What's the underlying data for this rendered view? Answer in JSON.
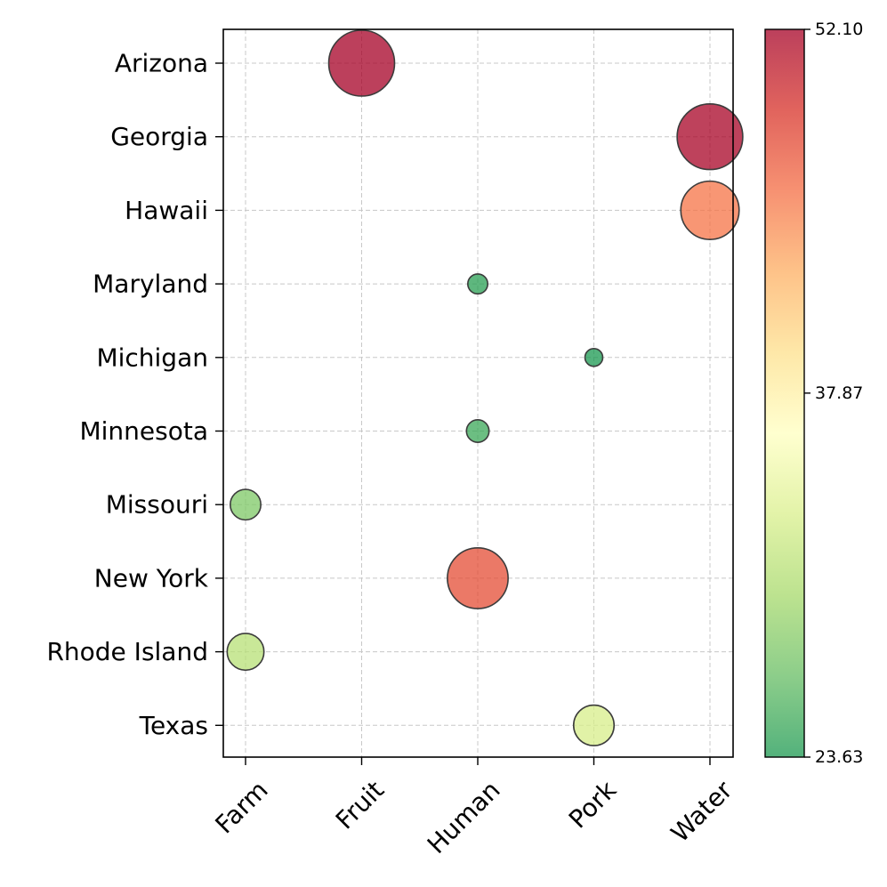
{
  "chart_data": {
    "type": "scatter",
    "subtype": "bubble",
    "title": "",
    "xlabel": "",
    "ylabel": "",
    "x_categories": [
      "Farm",
      "Fruit",
      "Human",
      "Pork",
      "Water"
    ],
    "y_categories": [
      "Arizona",
      "Georgia",
      "Hawaii",
      "Maryland",
      "Michigan",
      "Minnesota",
      "Missouri",
      "New York",
      "Rhode Island",
      "Texas"
    ],
    "grid": true,
    "points": [
      {
        "state": "Arizona",
        "category": "Fruit",
        "value": 52.1
      },
      {
        "state": "Georgia",
        "category": "Water",
        "value": 51.9
      },
      {
        "state": "Hawaii",
        "category": "Water",
        "value": 45.5
      },
      {
        "state": "Maryland",
        "category": "Human",
        "value": 24.2
      },
      {
        "state": "Michigan",
        "category": "Pork",
        "value": 23.63
      },
      {
        "state": "Minnesota",
        "category": "Human",
        "value": 25.0
      },
      {
        "state": "Missouri",
        "category": "Farm",
        "value": 28.0
      },
      {
        "state": "New York",
        "category": "Human",
        "value": 47.5
      },
      {
        "state": "Rhode Island",
        "category": "Farm",
        "value": 31.0
      },
      {
        "state": "Texas",
        "category": "Pork",
        "value": 33.0
      }
    ],
    "colorbar": {
      "colormap": "RdYlGn_r",
      "min": 23.63,
      "max": 52.1,
      "tick_labels": [
        "52.10",
        "37.87",
        "23.63"
      ],
      "tick_values": [
        52.1,
        37.87,
        23.63
      ],
      "stops": [
        "#1a9850",
        "#66bd63",
        "#a6d96a",
        "#d9ef8b",
        "#ffffbf",
        "#fee08b",
        "#fdae61",
        "#f46d43",
        "#d73027",
        "#a50026"
      ],
      "opacity": 0.75
    },
    "marker_edge_color": "#3c3c3c"
  }
}
